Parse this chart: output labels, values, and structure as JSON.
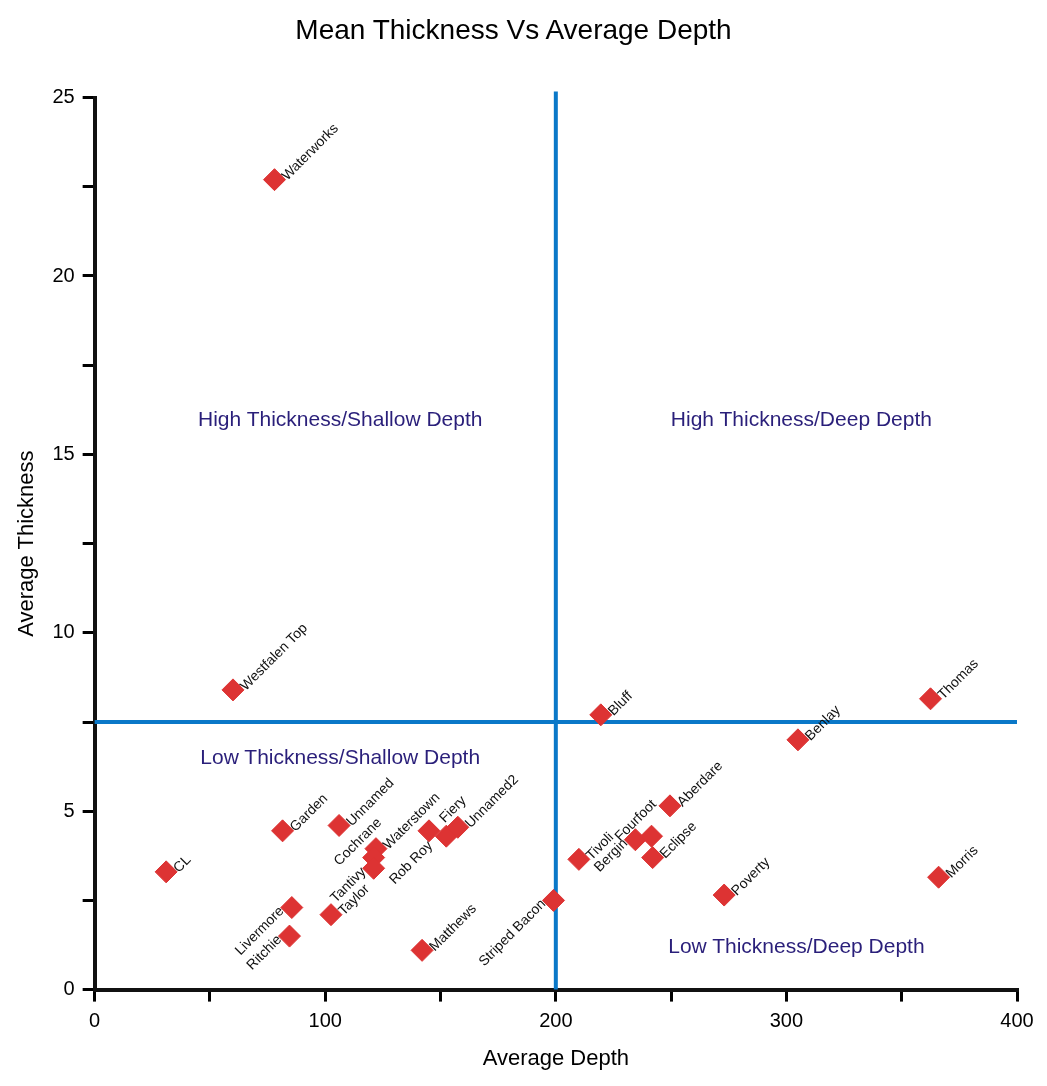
{
  "chart_data": {
    "type": "scatter",
    "title": "Mean Thickness Vs Average Depth",
    "xlabel": "Average Depth",
    "ylabel": "Average Thickness",
    "series": [
      {
        "color": "#dd3333",
        "x": [
          78,
          60,
          31,
          81.5,
          106,
          122,
          121,
          121,
          145,
          152.5,
          157.5,
          85.5,
          102.5,
          84.5,
          142,
          219.5,
          362.5,
          305,
          249.5,
          234.5,
          241.5,
          242,
          210,
          199,
          273,
          366
        ],
        "values": [
          22.7,
          8.4,
          3.3,
          4.45,
          4.6,
          3.95,
          3.7,
          3.4,
          4.45,
          4.3,
          4.55,
          2.3,
          2.1,
          1.5,
          1.1,
          7.7,
          8.15,
          7,
          5.15,
          4.2,
          4.3,
          3.7,
          3.65,
          2.5,
          2.65,
          3.15
        ],
        "value_labels": [
          "Waterworks",
          "Westfalen Top",
          "CL",
          "Garden",
          "Unnamed",
          "Waterstown",
          "Cochrane",
          "Tantivy",
          "Rob Roy",
          "Fiery",
          "Unnamed2",
          "Livermore",
          "Taylor",
          "Ritchie",
          "Matthews",
          "Bluff",
          "Thomas",
          "Benlay",
          "Aberdare",
          "Bergin",
          "Fourfoot",
          "Eclipse",
          "Tivoli",
          "Striped Bacon",
          "Poverty",
          "Morris"
        ]
      }
    ],
    "xlim": [
      0,
      400
    ],
    "ylim": [
      0,
      25
    ],
    "xticks": [
      0,
      {
        "value": 50,
        "label": null
      },
      100,
      {
        "value": 150,
        "label": null
      },
      200,
      {
        "value": 250,
        "label": null
      },
      300,
      {
        "value": 350,
        "label": null
      },
      400
    ],
    "yticks": [
      0,
      {
        "value": 2.5,
        "label": null
      },
      5,
      {
        "value": 7.5,
        "label": null
      },
      10,
      {
        "value": 12.5,
        "label": null
      },
      15,
      {
        "value": 17.5,
        "label": null
      },
      20,
      {
        "value": 22.5,
        "label": null
      },
      25
    ],
    "ref_lines": [
      {
        "axis": "x",
        "value": 200,
        "color": "#0a78c8"
      },
      {
        "axis": "y",
        "value": 7.5,
        "color": "#0a78c8"
      }
    ],
    "annotations": [
      "High Thickness/Shallow Depth",
      "High Thickness/Deep Depth",
      "Low Thickness/Shallow Depth",
      "Low Thickness/Deep Depth"
    ],
    "marker": "diamond",
    "grid": false,
    "legend": false
  }
}
